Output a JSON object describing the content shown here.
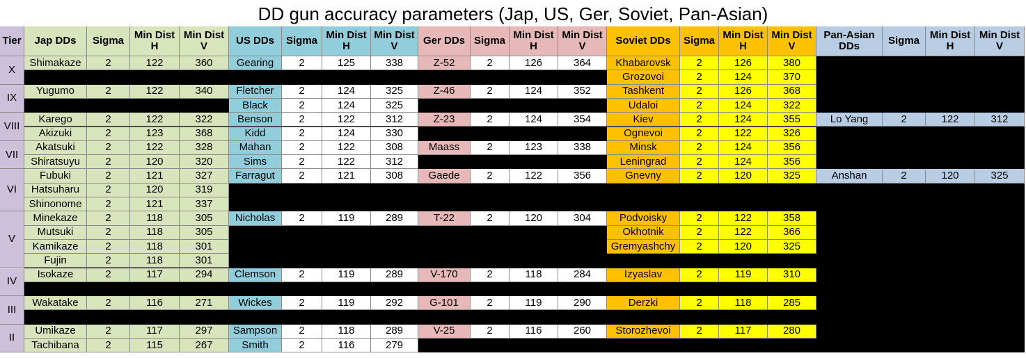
{
  "title": "DD gun accuracy parameters (Jap, US, Ger, Soviet, Pan-Asian)",
  "colors": {
    "tier": "#ccc0da",
    "jap": "#d8e4bc",
    "us": "#92cddc",
    "ger": "#e6b8b7",
    "soviet_name": "#ffc000",
    "soviet_data": "#ffff00",
    "panasian": "#b8cce4",
    "data_white": "#ffffff",
    "blank": "#000000"
  },
  "headers": {
    "tier": "Tier",
    "jap": "Jap DDs",
    "us": "US DDs",
    "ger": "Ger DDs",
    "soviet": "Soviet DDs",
    "panasian": "Pan-Asian DDs",
    "sigma": "Sigma",
    "mindist_h": "Min Dist H",
    "mindist_v": "Min Dist V"
  },
  "tiers": [
    "X",
    "IX",
    "VIII",
    "VII",
    "VI",
    "V",
    "IV",
    "III",
    "II"
  ],
  "chart_data": {
    "type": "table",
    "title": "DD gun accuracy parameters (Jap, US, Ger, Soviet, Pan-Asian)",
    "columns": [
      "Tier",
      "Jap DDs",
      "Sigma",
      "Min Dist H",
      "Min Dist V",
      "US DDs",
      "Sigma",
      "Min Dist H",
      "Min Dist V",
      "Ger DDs",
      "Sigma",
      "Min Dist H",
      "Min Dist V",
      "Soviet DDs",
      "Sigma",
      "Min Dist H",
      "Min Dist V",
      "Pan-Asian DDs",
      "Sigma",
      "Min Dist H",
      "Min Dist V"
    ],
    "series": [
      {
        "name": "Jap DDs",
        "ships": [
          [
            "X",
            "Shimakaze",
            2,
            122,
            360
          ],
          [
            "IX",
            "Yugumo",
            2,
            122,
            340
          ],
          [
            "VIII",
            "Karego",
            2,
            122,
            322
          ],
          [
            "VIII",
            "Akizuki",
            2,
            123,
            368
          ],
          [
            "VII",
            "Akatsuki",
            2,
            122,
            328
          ],
          [
            "VII",
            "Shiratsuyu",
            2,
            120,
            320
          ],
          [
            "VI",
            "Fubuki",
            2,
            121,
            327
          ],
          [
            "VI",
            "Hatsuharu",
            2,
            120,
            319
          ],
          [
            "VI",
            "Shinonome",
            2,
            121,
            337
          ],
          [
            "V",
            "Minekaze",
            2,
            118,
            305
          ],
          [
            "V",
            "Mutsuki",
            2,
            118,
            305
          ],
          [
            "V",
            "Kamikaze",
            2,
            118,
            301
          ],
          [
            "V",
            "Fujin",
            2,
            118,
            301
          ],
          [
            "IV",
            "Isokaze",
            2,
            117,
            294
          ],
          [
            "III",
            "Wakatake",
            2,
            116,
            271
          ],
          [
            "II",
            "Umikaze",
            2,
            117,
            297
          ],
          [
            "II",
            "Tachibana",
            2,
            115,
            267
          ]
        ]
      },
      {
        "name": "US DDs",
        "ships": [
          [
            "X",
            "Gearing",
            2,
            125,
            338
          ],
          [
            "IX",
            "Fletcher",
            2,
            124,
            325
          ],
          [
            "IX",
            "Black",
            2,
            124,
            325
          ],
          [
            "VIII",
            "Benson",
            2,
            122,
            312
          ],
          [
            "VIII",
            "Kidd",
            2,
            124,
            330
          ],
          [
            "VII",
            "Mahan",
            2,
            122,
            308
          ],
          [
            "VII",
            "Sims",
            2,
            122,
            312
          ],
          [
            "VI",
            "Farragut",
            2,
            121,
            308
          ],
          [
            "V",
            "Nicholas",
            2,
            119,
            289
          ],
          [
            "IV",
            "Clemson",
            2,
            119,
            289
          ],
          [
            "III",
            "Wickes",
            2,
            119,
            292
          ],
          [
            "II",
            "Sampson",
            2,
            118,
            289
          ],
          [
            "II",
            "Smith",
            2,
            116,
            279
          ]
        ]
      },
      {
        "name": "Ger DDs",
        "ships": [
          [
            "X",
            "Z-52",
            2,
            126,
            364
          ],
          [
            "IX",
            "Z-46",
            2,
            124,
            352
          ],
          [
            "VIII",
            "Z-23",
            2,
            124,
            354
          ],
          [
            "VII",
            "Maass",
            2,
            123,
            338
          ],
          [
            "VI",
            "Gaede",
            2,
            122,
            356
          ],
          [
            "V",
            "T-22",
            2,
            120,
            304
          ],
          [
            "IV",
            "V-170",
            2,
            118,
            284
          ],
          [
            "III",
            "G-101",
            2,
            119,
            290
          ],
          [
            "II",
            "V-25",
            2,
            116,
            260
          ]
        ]
      },
      {
        "name": "Soviet DDs",
        "ships": [
          [
            "X",
            "Khabarovsk",
            2,
            126,
            380
          ],
          [
            "X",
            "Grozovoi",
            2,
            124,
            370
          ],
          [
            "IX",
            "Tashkent",
            2,
            126,
            368
          ],
          [
            "IX",
            "Udaloi",
            2,
            124,
            322
          ],
          [
            "VIII",
            "Kiev",
            2,
            124,
            355
          ],
          [
            "VIII",
            "Ognevoi",
            2,
            122,
            326
          ],
          [
            "VII",
            "Minsk",
            2,
            124,
            356
          ],
          [
            "VII",
            "Leningrad",
            2,
            124,
            356
          ],
          [
            "VI",
            "Gnevny",
            2,
            120,
            325
          ],
          [
            "V",
            "Podvoisky",
            2,
            122,
            358
          ],
          [
            "V",
            "Okhotnik",
            2,
            122,
            366
          ],
          [
            "V",
            "Gremyashchy",
            2,
            120,
            325
          ],
          [
            "IV",
            "Izyaslav",
            2,
            119,
            310
          ],
          [
            "III",
            "Derzki",
            2,
            118,
            285
          ],
          [
            "II",
            "Storozhevoi",
            2,
            117,
            280
          ]
        ]
      },
      {
        "name": "Pan-Asian DDs",
        "ships": [
          [
            "VIII",
            "Lo Yang",
            2,
            122,
            312
          ],
          [
            "VI",
            "Anshan",
            2,
            120,
            325
          ]
        ]
      }
    ]
  }
}
